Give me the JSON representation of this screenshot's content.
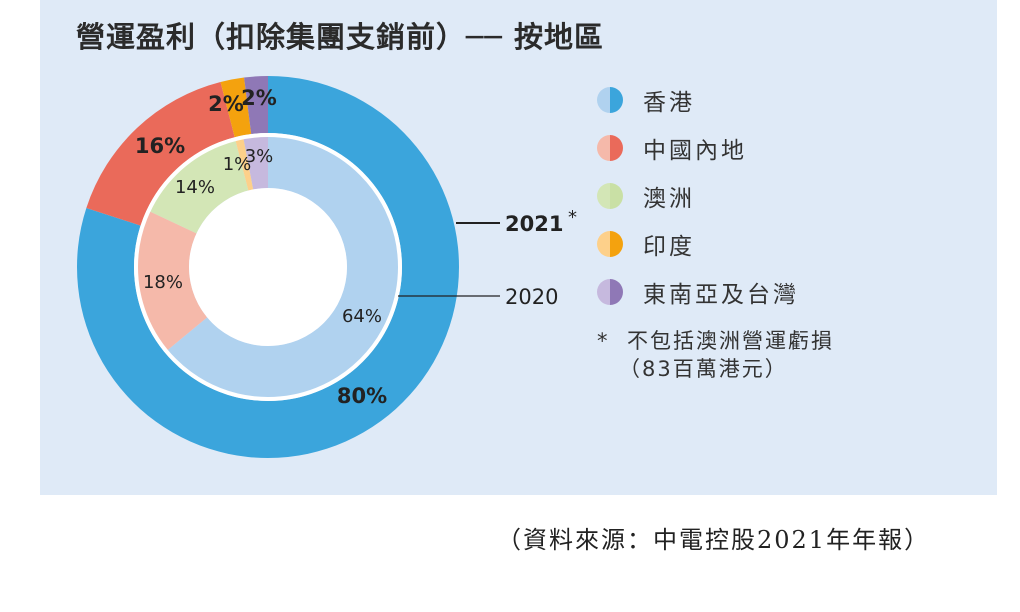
{
  "title": "營運盈利（扣除集團支銷前）── 按地區",
  "chart_data": {
    "type": "pie",
    "title": "營運盈利（扣除集團支銷前）── 按地區",
    "categories": [
      "香港",
      "中國內地",
      "澳洲",
      "印度",
      "東南亞及台灣"
    ],
    "series": [
      {
        "name": "2021",
        "label": "2021",
        "marker": "*",
        "values": [
          80,
          16,
          0,
          2,
          2
        ],
        "labels": [
          "80%",
          "16%",
          "",
          "2%",
          "2%"
        ]
      },
      {
        "name": "2020",
        "label": "2020",
        "values": [
          64,
          18,
          14,
          1,
          3
        ],
        "labels": [
          "64%",
          "18%",
          "14%",
          "1%",
          "3%"
        ]
      }
    ],
    "colors_2021": [
      "#3ba5dc",
      "#ea6a5a",
      "#c9e0a5",
      "#f4a20e",
      "#8f78b6"
    ],
    "colors_2020": [
      "#b0d2ef",
      "#f5b9aa",
      "#d3e6b6",
      "#fdd08a",
      "#c6b9de"
    ],
    "legend_position": "right"
  },
  "legend": [
    "香港",
    "中國內地",
    "澳洲",
    "印度",
    "東南亞及台灣"
  ],
  "note": {
    "marker": "*",
    "line1": "不包括澳洲營運虧損",
    "line2": "（83百萬港元）"
  },
  "source": "（資料來源：中電控股2021年年報）"
}
